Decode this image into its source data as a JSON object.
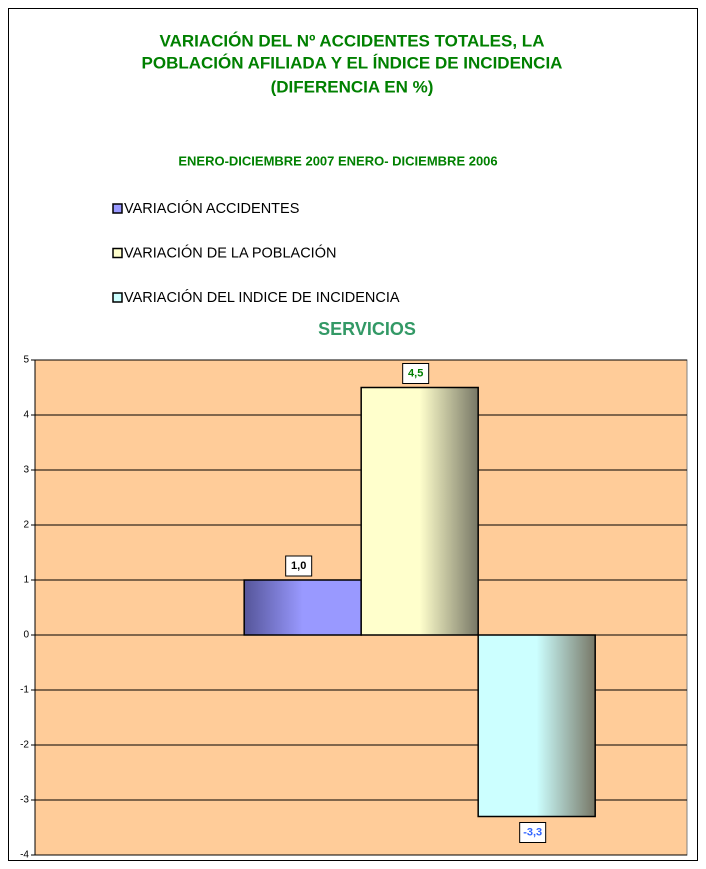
{
  "chart_data": {
    "type": "bar",
    "title": [
      "VARIACIÓN DEL Nº ACCIDENTES TOTALES, LA",
      "POBLACIÓN AFILIADA Y EL ÍNDICE DE INCIDENCIA",
      "(DIFERENCIA EN %)"
    ],
    "subtitle": "ENERO-DICIEMBRE 2007 ENERO- DICIEMBRE 2006",
    "chart_title": "SERVICIOS",
    "categories": [
      null
    ],
    "series": [
      {
        "name": "VARIACIÓN ACCIDENTES",
        "color": "#9999ff",
        "label_color": "#000000",
        "values": [
          1.0
        ],
        "value_labels": [
          "1,0"
        ]
      },
      {
        "name": "VARIACIÓN DE LA POBLACIÓN",
        "color": "#ffffcc",
        "label_color": "#008000",
        "values": [
          4.5
        ],
        "value_labels": [
          "4,5"
        ]
      },
      {
        "name": "VARIACIÓN DEL INDICE DE INCIDENCIA",
        "color": "#ccffff",
        "label_color": "#3366ff",
        "values": [
          -3.3
        ],
        "value_labels": [
          "-3,3"
        ]
      }
    ],
    "ylim": [
      -4,
      5
    ],
    "yticks": [
      -4,
      -3,
      -2,
      -1,
      0,
      1,
      2,
      3,
      4,
      5
    ],
    "grid": true,
    "plot_background": "#ffcc99"
  }
}
